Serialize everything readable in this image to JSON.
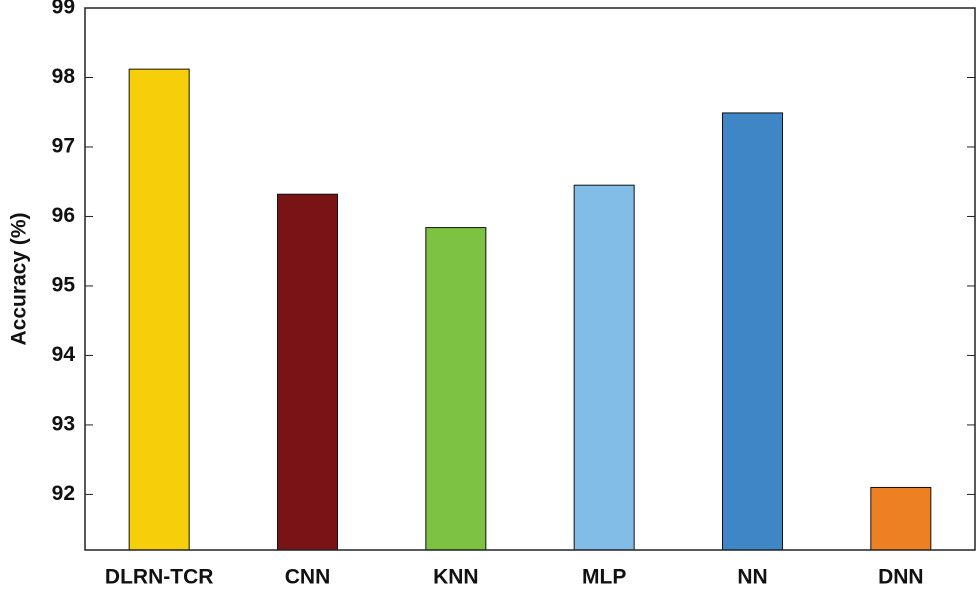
{
  "chart_data": {
    "type": "bar",
    "y_label": "Accuracy (%)",
    "categories": [
      "DLRN-TCR",
      "CNN",
      "KNN",
      "MLP",
      "NN",
      "DNN"
    ],
    "values": [
      98.12,
      96.32,
      95.84,
      96.45,
      97.49,
      92.1
    ],
    "colors": [
      "#f7ce0a",
      "#7a1316",
      "#7dc242",
      "#82bde8",
      "#3f86c6",
      "#ee8024"
    ],
    "ylim": [
      91.2,
      99
    ],
    "yticks": [
      92,
      93,
      94,
      95,
      96,
      97,
      98,
      99
    ],
    "grid": false
  }
}
